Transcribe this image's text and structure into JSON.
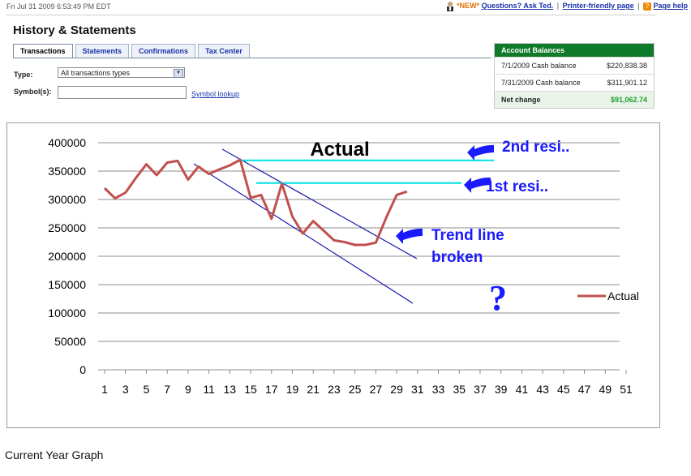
{
  "topbar": {
    "datetime": "Fri Jul 31 2009 6:53:49 PM EDT",
    "new_badge": "*NEW*",
    "link_questions": "Questions? Ask Ted.",
    "separator": "|",
    "link_printer": "Printer-friendly page",
    "link_help": "Page help"
  },
  "page": {
    "title": "History & Statements"
  },
  "tabs": [
    {
      "label": "Transactions"
    },
    {
      "label": "Statements"
    },
    {
      "label": "Confirmations"
    },
    {
      "label": "Tax Center"
    }
  ],
  "form": {
    "type_label": "Type:",
    "type_value": "All transactions types",
    "symbol_label": "Symbol(s):",
    "symbol_value": "",
    "symbol_lookup": "Symbol lookup"
  },
  "balances": {
    "header": "Account Balances",
    "rows": [
      {
        "label": "7/1/2009 Cash balance",
        "value": "$220,838.38"
      },
      {
        "label": "7/31/2009 Cash balance",
        "value": "$311,901.12"
      }
    ],
    "net_label": "Net change",
    "net_value": "$91,062.74",
    "net_color": "#1aa02a"
  },
  "chart_data": {
    "type": "line",
    "title": "Actual",
    "legend": "Actual",
    "legend_position": "right",
    "ylim": [
      0,
      400000
    ],
    "yticks": [
      "400000",
      "350000",
      "300000",
      "250000",
      "200000",
      "150000",
      "100000",
      "50000",
      "0"
    ],
    "xticks": [
      "1",
      "3",
      "5",
      "7",
      "9",
      "11",
      "13",
      "15",
      "17",
      "19",
      "21",
      "23",
      "25",
      "27",
      "29",
      "31",
      "33",
      "35",
      "37",
      "39",
      "41",
      "43",
      "45",
      "47",
      "49",
      "51"
    ],
    "x_range": [
      1,
      51
    ],
    "grid": "horizontal",
    "series_color": "#c0504d",
    "series": [
      {
        "name": "Actual",
        "x": [
          1,
          2,
          3,
          4,
          5,
          6,
          7,
          8,
          9,
          10,
          11,
          12,
          13,
          14,
          15,
          16,
          17,
          18,
          19,
          20,
          21,
          22,
          23,
          24,
          25,
          26,
          27,
          28,
          29,
          30
        ],
        "values": [
          320000,
          302000,
          312000,
          338000,
          362000,
          343000,
          365000,
          368000,
          335000,
          358000,
          345000,
          353000,
          360000,
          370000,
          303000,
          308000,
          266000,
          328000,
          270000,
          240000,
          262000,
          245000,
          228000,
          225000,
          220000,
          220000,
          224000,
          268000,
          308000,
          314000
        ]
      }
    ],
    "annotations": {
      "color": "#1a1aff",
      "cyan_color": "#00e0e0",
      "second_resistance_label": "2nd resi..",
      "second_resistance_y": 369000,
      "first_resistance_label": "1st resi..",
      "first_resistance_y": 329000,
      "trend_label_1": "Trend line",
      "trend_label_2": "broken",
      "question_mark": "?"
    }
  },
  "caption": "Current Year Graph"
}
